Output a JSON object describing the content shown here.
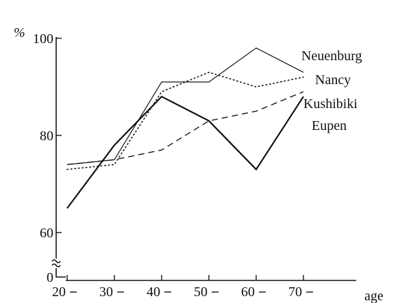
{
  "chart_data": {
    "type": "line",
    "ylabel": "%",
    "xlabel": "age",
    "x": [
      20,
      30,
      40,
      50,
      60,
      70
    ],
    "x_tick_labels": [
      "20",
      "30",
      "40",
      "50",
      "60",
      "70"
    ],
    "y_tick_values": [
      0,
      60,
      80,
      100
    ],
    "y_tick_labels": [
      "0",
      "60",
      "80",
      "100"
    ],
    "ylim": [
      0,
      100
    ],
    "y_axis_break": true,
    "grid": false,
    "legend": "right",
    "series": [
      {
        "name": "Neuenburg",
        "style": "thin-solid",
        "values": [
          74,
          75,
          91,
          91,
          98,
          93
        ]
      },
      {
        "name": "Nancy",
        "style": "dotted",
        "values": [
          73,
          74,
          89,
          93,
          90,
          92
        ]
      },
      {
        "name": "Kushibiki",
        "style": "thick-solid",
        "values": [
          65,
          78,
          88,
          83,
          73,
          88
        ]
      },
      {
        "name": "Eupen",
        "style": "dashed",
        "values": [
          74,
          75,
          77,
          83,
          85,
          89
        ]
      }
    ]
  },
  "colors": {
    "ink": "#111111",
    "background": "#ffffff"
  }
}
